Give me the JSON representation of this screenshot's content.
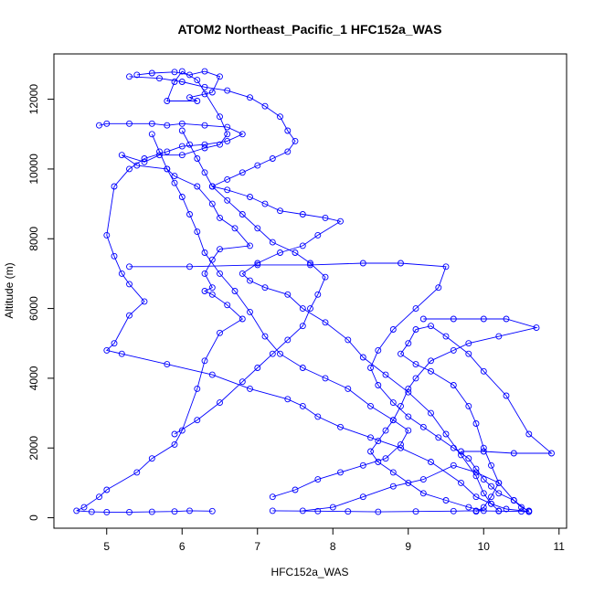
{
  "chart_data": {
    "type": "scatter",
    "title": "ATOM2 Northeast_Pacific_1 HFC152a_WAS",
    "xlabel": "HFC152a_WAS",
    "ylabel": "Altitude (m)",
    "xlim": [
      4.3,
      11.1
    ],
    "ylim": [
      -300,
      13300
    ],
    "xticks": [
      5,
      6,
      7,
      8,
      9,
      10,
      11
    ],
    "yticks": [
      0,
      2000,
      4000,
      6000,
      8000,
      10000,
      12000
    ],
    "grid": false,
    "series_color": "#0000ff",
    "marker": "open-circle",
    "connected": true,
    "series": [
      {
        "points": [
          [
            5.4,
            12700
          ],
          [
            5.6,
            12750
          ],
          [
            5.9,
            12780
          ],
          [
            6.1,
            12700
          ],
          [
            6.3,
            12800
          ],
          [
            6.5,
            12650
          ],
          [
            6.4,
            12200
          ],
          [
            6.3,
            12150
          ],
          [
            6.1,
            12050
          ],
          [
            6.2,
            11950
          ],
          [
            5.8,
            11950
          ],
          [
            5.9,
            12500
          ],
          [
            6.0,
            12800
          ],
          [
            6.2,
            12550
          ],
          [
            6.5,
            11500
          ],
          [
            6.6,
            11000
          ],
          [
            6.5,
            10700
          ],
          [
            6.3,
            10600
          ],
          [
            6.0,
            10400
          ],
          [
            5.7,
            10400
          ],
          [
            5.5,
            10200
          ],
          [
            5.2,
            10400
          ],
          [
            5.4,
            10100
          ],
          [
            5.8,
            10000
          ],
          [
            5.9,
            9800
          ],
          [
            6.2,
            9500
          ],
          [
            6.4,
            9000
          ],
          [
            6.5,
            8600
          ],
          [
            6.7,
            8300
          ],
          [
            6.9,
            7800
          ],
          [
            6.5,
            7700
          ],
          [
            6.4,
            7400
          ],
          [
            6.3,
            7000
          ],
          [
            6.4,
            6600
          ],
          [
            6.3,
            6500
          ],
          [
            6.4,
            6400
          ],
          [
            6.6,
            6100
          ],
          [
            6.8,
            5700
          ],
          [
            6.5,
            5300
          ],
          [
            6.3,
            4500
          ],
          [
            6.2,
            3700
          ],
          [
            6.0,
            2500
          ],
          [
            5.9,
            2100
          ],
          [
            5.6,
            1700
          ],
          [
            5.4,
            1300
          ],
          [
            5.0,
            800
          ],
          [
            4.9,
            600
          ],
          [
            4.7,
            300
          ],
          [
            4.6,
            200
          ],
          [
            4.8,
            170
          ],
          [
            5.0,
            160
          ],
          [
            5.3,
            160
          ],
          [
            5.6,
            170
          ],
          [
            5.9,
            180
          ],
          [
            6.1,
            200
          ],
          [
            6.4,
            190
          ]
        ]
      },
      {
        "points": [
          [
            4.9,
            11250
          ],
          [
            5.0,
            11300
          ],
          [
            5.3,
            11300
          ],
          [
            5.6,
            11300
          ],
          [
            5.8,
            11250
          ],
          [
            6.0,
            11300
          ],
          [
            6.3,
            11250
          ],
          [
            6.6,
            11200
          ],
          [
            6.8,
            11000
          ],
          [
            6.6,
            10800
          ],
          [
            6.3,
            10700
          ],
          [
            6.0,
            10650
          ],
          [
            5.8,
            10500
          ],
          [
            5.5,
            10300
          ],
          [
            5.3,
            10000
          ],
          [
            5.1,
            9500
          ],
          [
            5.0,
            8100
          ],
          [
            5.1,
            7500
          ],
          [
            5.2,
            7000
          ],
          [
            5.3,
            6700
          ],
          [
            5.5,
            6200
          ],
          [
            5.3,
            5800
          ],
          [
            5.1,
            5000
          ],
          [
            5.0,
            4800
          ],
          [
            5.2,
            4700
          ],
          [
            5.8,
            4400
          ],
          [
            6.4,
            4100
          ],
          [
            6.9,
            3700
          ],
          [
            7.4,
            3400
          ],
          [
            7.6,
            3200
          ],
          [
            7.8,
            2900
          ],
          [
            8.1,
            2600
          ],
          [
            8.5,
            2300
          ],
          [
            8.9,
            2000
          ],
          [
            9.3,
            1600
          ],
          [
            9.7,
            1000
          ],
          [
            9.9,
            600
          ],
          [
            10.1,
            400
          ],
          [
            10.3,
            250
          ],
          [
            10.6,
            180
          ]
        ]
      },
      {
        "points": [
          [
            5.3,
            12650
          ],
          [
            5.7,
            12600
          ],
          [
            6.0,
            12500
          ],
          [
            6.3,
            12350
          ],
          [
            6.6,
            12250
          ],
          [
            6.9,
            12050
          ],
          [
            7.1,
            11800
          ],
          [
            7.3,
            11500
          ],
          [
            7.4,
            11100
          ],
          [
            7.5,
            10800
          ],
          [
            7.4,
            10500
          ],
          [
            7.2,
            10300
          ],
          [
            7.0,
            10100
          ],
          [
            6.8,
            9900
          ],
          [
            6.6,
            9700
          ],
          [
            6.4,
            9500
          ],
          [
            6.6,
            9400
          ],
          [
            6.9,
            9200
          ],
          [
            7.1,
            9000
          ],
          [
            7.3,
            8800
          ],
          [
            7.6,
            8700
          ],
          [
            7.9,
            8600
          ],
          [
            8.1,
            8500
          ],
          [
            7.8,
            8100
          ],
          [
            7.6,
            7800
          ],
          [
            7.3,
            7600
          ],
          [
            7.0,
            7300
          ],
          [
            6.8,
            7000
          ],
          [
            6.9,
            6800
          ],
          [
            7.1,
            6600
          ],
          [
            7.4,
            6400
          ],
          [
            7.6,
            6000
          ],
          [
            7.9,
            5600
          ],
          [
            8.2,
            5100
          ],
          [
            8.4,
            4600
          ],
          [
            8.7,
            4100
          ],
          [
            9.0,
            3600
          ],
          [
            9.3,
            3000
          ],
          [
            9.5,
            2400
          ],
          [
            9.7,
            1800
          ],
          [
            9.9,
            1200
          ],
          [
            10.0,
            700
          ],
          [
            10.1,
            400
          ],
          [
            10.2,
            200
          ]
        ]
      },
      {
        "points": [
          [
            5.3,
            7200
          ],
          [
            6.1,
            7200
          ],
          [
            7.0,
            7250
          ],
          [
            7.7,
            7250
          ],
          [
            8.4,
            7300
          ],
          [
            8.9,
            7300
          ],
          [
            9.5,
            7200
          ],
          [
            9.4,
            6600
          ],
          [
            9.1,
            6000
          ],
          [
            8.8,
            5400
          ],
          [
            8.6,
            4800
          ],
          [
            8.5,
            4300
          ],
          [
            8.6,
            3800
          ],
          [
            8.8,
            3300
          ],
          [
            9.0,
            2900
          ],
          [
            9.2,
            2600
          ],
          [
            9.4,
            2300
          ],
          [
            9.6,
            2000
          ],
          [
            9.8,
            1700
          ],
          [
            9.9,
            1400
          ],
          [
            10.0,
            1100
          ],
          [
            10.1,
            900
          ],
          [
            10.2,
            700
          ],
          [
            10.4,
            500
          ],
          [
            10.5,
            300
          ],
          [
            10.6,
            200
          ]
        ]
      },
      {
        "points": [
          [
            9.2,
            5700
          ],
          [
            9.6,
            5700
          ],
          [
            10.0,
            5700
          ],
          [
            10.3,
            5700
          ],
          [
            10.7,
            5450
          ],
          [
            10.2,
            5200
          ],
          [
            9.8,
            5000
          ],
          [
            9.6,
            4800
          ],
          [
            9.3,
            4500
          ],
          [
            9.1,
            4000
          ],
          [
            9.0,
            3700
          ],
          [
            8.9,
            3200
          ],
          [
            8.8,
            2800
          ],
          [
            8.7,
            2500
          ],
          [
            8.6,
            2200
          ],
          [
            8.5,
            1900
          ],
          [
            8.6,
            1600
          ],
          [
            8.8,
            1300
          ],
          [
            9.0,
            1000
          ],
          [
            9.2,
            700
          ],
          [
            9.5,
            500
          ],
          [
            9.8,
            300
          ],
          [
            10.0,
            200
          ]
        ]
      },
      {
        "points": [
          [
            9.7,
            1900
          ],
          [
            10.0,
            1900
          ],
          [
            10.4,
            1850
          ],
          [
            10.9,
            1850
          ],
          [
            10.6,
            2400
          ],
          [
            10.3,
            3500
          ],
          [
            10.0,
            4200
          ],
          [
            9.8,
            4700
          ],
          [
            9.5,
            5200
          ],
          [
            9.3,
            5500
          ],
          [
            9.1,
            5400
          ],
          [
            9.0,
            5000
          ],
          [
            8.9,
            4700
          ],
          [
            9.1,
            4400
          ],
          [
            9.3,
            4200
          ],
          [
            9.6,
            3800
          ],
          [
            9.8,
            3200
          ],
          [
            9.9,
            2700
          ],
          [
            10.0,
            2000
          ],
          [
            10.1,
            1500
          ],
          [
            10.2,
            1000
          ],
          [
            10.1,
            600
          ],
          [
            10.0,
            300
          ],
          [
            9.9,
            180
          ]
        ]
      },
      {
        "points": [
          [
            7.2,
            200
          ],
          [
            7.8,
            190
          ],
          [
            8.2,
            180
          ],
          [
            8.6,
            170
          ],
          [
            9.1,
            180
          ],
          [
            9.6,
            190
          ],
          [
            9.9,
            200
          ],
          [
            10.2,
            190
          ],
          [
            10.5,
            180
          ],
          [
            10.6,
            170
          ],
          [
            10.4,
            500
          ],
          [
            10.2,
            1000
          ],
          [
            9.9,
            1300
          ],
          [
            9.6,
            1500
          ],
          [
            9.2,
            1100
          ],
          [
            8.8,
            900
          ],
          [
            8.4,
            600
          ],
          [
            8.0,
            300
          ],
          [
            7.6,
            200
          ]
        ]
      },
      {
        "points": [
          [
            7.2,
            600
          ],
          [
            7.5,
            800
          ],
          [
            7.8,
            1100
          ],
          [
            8.1,
            1300
          ],
          [
            8.4,
            1500
          ],
          [
            8.7,
            1700
          ],
          [
            8.9,
            2100
          ],
          [
            9.0,
            2500
          ],
          [
            8.8,
            2800
          ],
          [
            8.5,
            3200
          ],
          [
            8.2,
            3700
          ],
          [
            7.9,
            4000
          ],
          [
            7.6,
            4300
          ],
          [
            7.3,
            4700
          ],
          [
            7.1,
            5200
          ],
          [
            6.9,
            5900
          ],
          [
            6.7,
            6500
          ],
          [
            6.5,
            7000
          ],
          [
            6.3,
            7600
          ],
          [
            6.2,
            8200
          ],
          [
            6.1,
            8700
          ],
          [
            6.0,
            9200
          ],
          [
            5.9,
            9600
          ],
          [
            5.8,
            10000
          ],
          [
            5.7,
            10500
          ],
          [
            5.6,
            11000
          ]
        ]
      },
      {
        "points": [
          [
            5.9,
            2400
          ],
          [
            6.2,
            2800
          ],
          [
            6.5,
            3300
          ],
          [
            6.8,
            3900
          ],
          [
            7.0,
            4300
          ],
          [
            7.2,
            4700
          ],
          [
            7.4,
            5100
          ],
          [
            7.6,
            5500
          ],
          [
            7.7,
            6000
          ],
          [
            7.8,
            6400
          ],
          [
            7.9,
            6900
          ],
          [
            7.7,
            7300
          ],
          [
            7.5,
            7600
          ],
          [
            7.2,
            7900
          ],
          [
            7.0,
            8300
          ],
          [
            6.8,
            8700
          ],
          [
            6.6,
            9100
          ],
          [
            6.4,
            9500
          ],
          [
            6.3,
            9900
          ],
          [
            6.2,
            10300
          ],
          [
            6.1,
            10700
          ],
          [
            6.0,
            11100
          ]
        ]
      }
    ]
  }
}
